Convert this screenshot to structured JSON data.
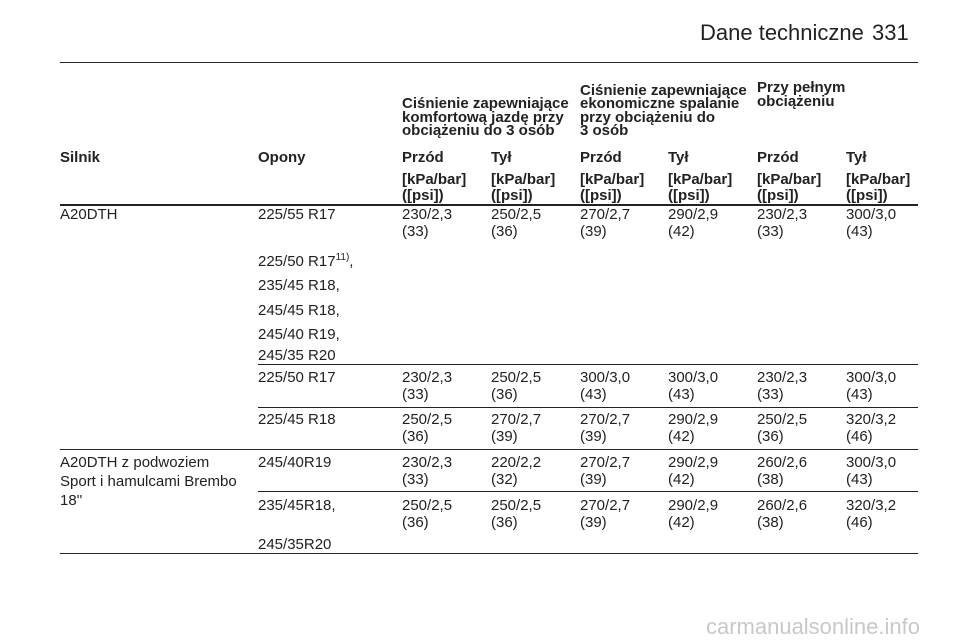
{
  "header": {
    "title": "Dane techniczne",
    "page": "331"
  },
  "table": {
    "groups": [
      [
        "Ciśnienie zapewniające",
        "komfortową jazdę przy",
        "obciążeniu do 3 osób"
      ],
      [
        "Ciśnienie zapewniające",
        "ekonomiczne spalanie",
        "przy obciążeniu do",
        "3 osób"
      ],
      [
        "Przy pełnym",
        "obciążeniu"
      ]
    ],
    "columns": [
      "Silnik",
      "Opony",
      "Przód",
      "Tył",
      "Przód",
      "Tył",
      "Przód",
      "Tył"
    ],
    "units": [
      [
        "[kPa/bar]",
        "([psi])"
      ],
      [
        "[kPa/bar]",
        "([psi])"
      ],
      [
        "[kPa/bar]",
        "([psi])"
      ],
      [
        "[kPa/bar]",
        "([psi])"
      ],
      [
        "[kPa/bar]",
        "([psi])"
      ],
      [
        "[kPa/bar]",
        "([psi])"
      ]
    ],
    "rows": [
      {
        "engine": [
          "A20DTH"
        ],
        "tyres": [
          {
            "text": "225/55 R17"
          },
          {
            "text": "225/50 R17",
            "sup": "11)",
            "after": ","
          },
          {
            "text": "235/45 R18,"
          },
          {
            "text": "245/45 R18,"
          },
          {
            "text": "245/40 R19,"
          },
          {
            "text": "245/35 R20"
          }
        ],
        "values": [
          [
            "230/2,3",
            "(33)"
          ],
          [
            "250/2,5",
            "(36)"
          ],
          [
            "270/2,7",
            "(39)"
          ],
          [
            "290/2,9",
            "(42)"
          ],
          [
            "230/2,3",
            "(33)"
          ],
          [
            "300/3,0",
            "(43)"
          ]
        ]
      },
      {
        "engine": [],
        "tyres": [
          {
            "text": "225/50 R17"
          }
        ],
        "values": [
          [
            "230/2,3",
            "(33)"
          ],
          [
            "250/2,5",
            "(36)"
          ],
          [
            "300/3,0",
            "(43)"
          ],
          [
            "300/3,0",
            "(43)"
          ],
          [
            "230/2,3",
            "(33)"
          ],
          [
            "300/3,0",
            "(43)"
          ]
        ]
      },
      {
        "engine": [],
        "tyres": [
          {
            "text": "225/45 R18"
          }
        ],
        "values": [
          [
            "250/2,5",
            "(36)"
          ],
          [
            "270/2,7",
            "(39)"
          ],
          [
            "270/2,7",
            "(39)"
          ],
          [
            "290/2,9",
            "(42)"
          ],
          [
            "250/2,5",
            "(36)"
          ],
          [
            "320/3,2",
            "(46)"
          ]
        ]
      },
      {
        "engine": [
          "A20DTH z podwoziem",
          "Sport i hamulcami Brembo",
          "18''"
        ],
        "tyres": [
          {
            "text": "245/40R19"
          }
        ],
        "values": [
          [
            "230/2,3",
            "(33)"
          ],
          [
            "220/2,2",
            "(32)"
          ],
          [
            "270/2,7",
            "(39)"
          ],
          [
            "290/2,9",
            "(42)"
          ],
          [
            "260/2,6",
            "(38)"
          ],
          [
            "300/3,0",
            "(43)"
          ]
        ]
      },
      {
        "engine": [],
        "tyres": [
          {
            "text": "235/45R18,"
          },
          {
            "text": "245/35R20"
          }
        ],
        "values": [
          [
            "250/2,5",
            "(36)"
          ],
          [
            "250/2,5",
            "(36)"
          ],
          [
            "270/2,7",
            "(39)"
          ],
          [
            "290/2,9",
            "(42)"
          ],
          [
            "260/2,6",
            "(38)"
          ],
          [
            "320/3,2",
            "(46)"
          ]
        ]
      }
    ]
  },
  "footer": "carmanualsonline.info"
}
